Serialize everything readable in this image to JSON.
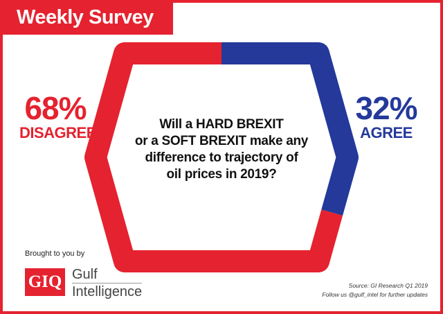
{
  "header": {
    "title": "Weekly Survey"
  },
  "colors": {
    "disagree": "#e5222f",
    "agree": "#24399a",
    "frame": "#e5222f"
  },
  "chart_data": {
    "type": "pie",
    "style": "hexagonal-ring",
    "series": [
      {
        "name": "DISAGREE",
        "value": 68,
        "label": "68%",
        "color": "#e5222f"
      },
      {
        "name": "AGREE",
        "value": 32,
        "label": "32%",
        "color": "#24399a"
      }
    ]
  },
  "question": {
    "lines": [
      "Will a HARD BREXIT",
      "or a SOFT BREXIT make any",
      "difference to trajectory of",
      "oil prices in 2019?"
    ]
  },
  "footer": {
    "brought_by": "Brought to you by",
    "logo_mark": "GIQ",
    "logo_line1": "Gulf",
    "logo_line2": "Intelligence",
    "source": "Source: GI Research Q1 2019",
    "follow": "Follow us @gulf_intel for further updates"
  }
}
